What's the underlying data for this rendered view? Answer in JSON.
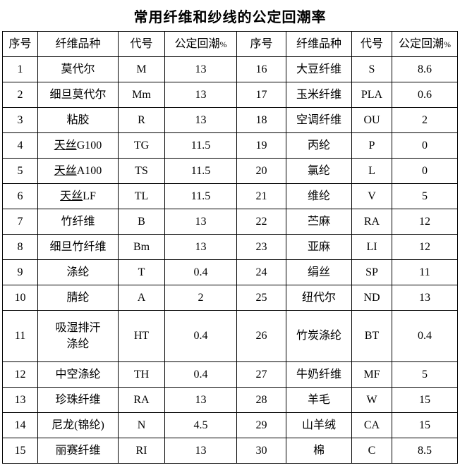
{
  "title": "常用纤维和纱线的公定回潮率",
  "table": {
    "headers": [
      "序号",
      "纤维品种",
      "代号",
      "公定回潮%",
      "序号",
      "纤维品种",
      "代号",
      "公定回潮%"
    ],
    "column_roles": [
      "row-number",
      "fiber-name",
      "fiber-code",
      "moisture-regain",
      "row-number",
      "fiber-name",
      "fiber-code",
      "moisture-regain"
    ],
    "underlined_terms": [
      "天丝"
    ],
    "tall_row_index": 10,
    "rows": [
      [
        "1",
        "莫代尔",
        "M",
        "13",
        "16",
        "大豆纤维",
        "S",
        "8.6"
      ],
      [
        "2",
        "细旦莫代尔",
        "Mm",
        "13",
        "17",
        "玉米纤维",
        "PLA",
        "0.6"
      ],
      [
        "3",
        "粘胶",
        "R",
        "13",
        "18",
        "空调纤维",
        "OU",
        "2"
      ],
      [
        "4",
        "天丝G100",
        "TG",
        "11.5",
        "19",
        "丙纶",
        "P",
        "0"
      ],
      [
        "5",
        "天丝A100",
        "TS",
        "11.5",
        "20",
        "氯纶",
        "L",
        "0"
      ],
      [
        "6",
        "天丝LF",
        "TL",
        "11.5",
        "21",
        "维纶",
        "V",
        "5"
      ],
      [
        "7",
        "竹纤维",
        "B",
        "13",
        "22",
        "苎麻",
        "RA",
        "12"
      ],
      [
        "8",
        "细旦竹纤维",
        "Bm",
        "13",
        "23",
        "亚麻",
        "LI",
        "12"
      ],
      [
        "9",
        "涤纶",
        "T",
        "0.4",
        "24",
        "绢丝",
        "SP",
        "11"
      ],
      [
        "10",
        "腈纶",
        "A",
        "2",
        "25",
        "纽代尔",
        "ND",
        "13"
      ],
      [
        "11",
        "吸湿排汗\n涤纶",
        "HT",
        "0.4",
        "26",
        "竹炭涤纶",
        "BT",
        "0.4"
      ],
      [
        "12",
        "中空涤纶",
        "TH",
        "0.4",
        "27",
        "牛奶纤维",
        "MF",
        "5"
      ],
      [
        "13",
        "珍珠纤维",
        "RA",
        "13",
        "28",
        "羊毛",
        "W",
        "15"
      ],
      [
        "14",
        "尼龙(锦纶)",
        "N",
        "4.5",
        "29",
        "山羊绒",
        "CA",
        "15"
      ],
      [
        "15",
        "丽赛纤维",
        "RI",
        "13",
        "30",
        "棉",
        "C",
        "8.5"
      ]
    ]
  }
}
